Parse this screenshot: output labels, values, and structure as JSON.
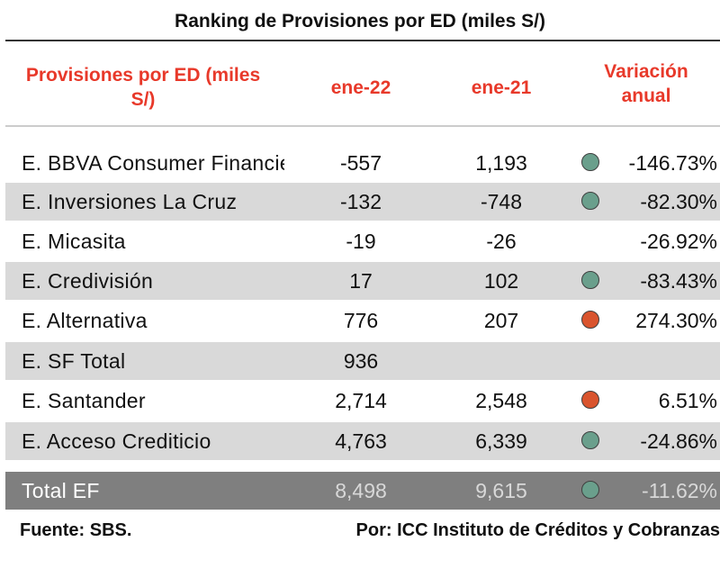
{
  "title": "Ranking de Provisiones por ED (miles S/)",
  "headers": {
    "name_line1": "Provisiones por ED (miles",
    "name_line2": "S/)",
    "col_a": "ene-22",
    "col_b": "ene-21",
    "var_line1": "Variación",
    "var_line2": "anual"
  },
  "colors": {
    "header_text": "#e8392a",
    "dot_green": "#6a9f8c",
    "dot_red": "#d9542e",
    "row_shade": "#d9d9d9",
    "total_row": "#7f7f7f"
  },
  "rows": [
    {
      "name": "E. BBVA Consumer Financiera",
      "a": "-557",
      "b": "1,193",
      "dot": "green",
      "var": "-146.73%"
    },
    {
      "name": "E. Inversiones La Cruz",
      "a": "-132",
      "b": "-748",
      "dot": "green",
      "var": "-82.30%"
    },
    {
      "name": "E. Micasita",
      "a": "-19",
      "b": "-26",
      "dot": "none",
      "var": "-26.92%"
    },
    {
      "name": "E. Credivisión",
      "a": "17",
      "b": "102",
      "dot": "green",
      "var": "-83.43%"
    },
    {
      "name": "E. Alternativa",
      "a": "776",
      "b": "207",
      "dot": "red",
      "var": "274.30%"
    },
    {
      "name": "E. SF Total",
      "a": "936",
      "b": "",
      "dot": "none",
      "var": ""
    },
    {
      "name": "E. Santander",
      "a": "2,714",
      "b": "2,548",
      "dot": "red",
      "var": "6.51%"
    },
    {
      "name": "E. Acceso Crediticio",
      "a": "4,763",
      "b": "6,339",
      "dot": "green",
      "var": "-24.86%"
    }
  ],
  "total": {
    "name": "Total EF",
    "a": "8,498",
    "b": "9,615",
    "dot": "green",
    "var": "-11.62%"
  },
  "footer": {
    "source": "Fuente: SBS.",
    "credit": "Por: ICC Instituto de Créditos y Cobranzas"
  }
}
